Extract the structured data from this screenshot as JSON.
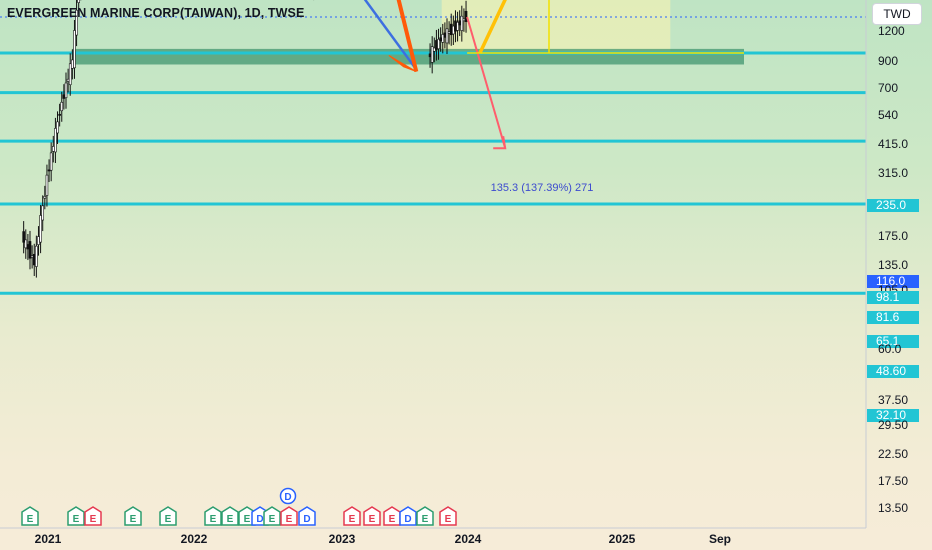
{
  "header": {
    "title": "EVERGREEN MARINE CORP(TAIWAN), 1D, TWSE",
    "currency_button": "TWD"
  },
  "colors": {
    "level_line": "#22c5d4",
    "level_label_bg": "#22c5d4",
    "zigzag": "#ff5a0a",
    "trend": "#3d6fe0",
    "up_arrow": "#ffc107",
    "down_arrow": "#ff5d6c",
    "target_box": "#fff4b0",
    "support_zone": "#2e8b63",
    "earnings_badge_green": "#2c9d6f",
    "earnings_badge_red": "#e53950",
    "dividend_badge": "#2962ff"
  },
  "chart_data": {
    "type": "candlestick",
    "title": "EVERGREEN MARINE CORP(TAIWAN), 1D, TWSE",
    "scale": "log",
    "x_axis_labels": [
      "2021",
      "2022",
      "2023",
      "2024",
      "2025",
      "Sep"
    ],
    "y_axis_labels": [
      "1200",
      "900",
      "700",
      "540",
      "415.0",
      "315.0",
      "235.0",
      "175.0",
      "135.0",
      "116.0",
      "105.0",
      "98.1",
      "81.6",
      "65.1",
      "60.0",
      "48.60",
      "37.50",
      "32.10",
      "29.50",
      "22.50",
      "17.50",
      "13.50"
    ],
    "highlighted_price_labels": [
      "235.0",
      "116.0",
      "98.1",
      "81.6",
      "65.1",
      "48.60",
      "32.10"
    ],
    "horizontal_levels": [
      235.0,
      98.1,
      81.6,
      65.1,
      48.6,
      32.1
    ],
    "last_price": 116.0,
    "price_series": [
      {
        "x": "2020-11",
        "y": 42
      },
      {
        "x": "2020-12",
        "y": 37
      },
      {
        "x": "2021-01",
        "y": 55
      },
      {
        "x": "2021-02",
        "y": 75
      },
      {
        "x": "2021-03",
        "y": 95
      },
      {
        "x": "2021-04",
        "y": 190
      },
      {
        "x": "2021-05",
        "y": 230
      },
      {
        "x": "2021-06",
        "y": 360
      },
      {
        "x": "2021-07",
        "y": 580
      },
      {
        "x": "2021-08",
        "y": 380
      },
      {
        "x": "2021-09",
        "y": 330
      },
      {
        "x": "2021-10",
        "y": 245
      },
      {
        "x": "2021-11",
        "y": 325
      },
      {
        "x": "2021-12",
        "y": 360
      },
      {
        "x": "2022-01",
        "y": 320
      },
      {
        "x": "2022-02",
        "y": 340
      },
      {
        "x": "2022-03",
        "y": 380
      },
      {
        "x": "2022-04",
        "y": 280
      },
      {
        "x": "2022-05",
        "y": 275
      },
      {
        "x": "2022-06",
        "y": 205
      },
      {
        "x": "2022-07",
        "y": 270
      },
      {
        "x": "2022-08",
        "y": 215
      },
      {
        "x": "2022-09",
        "y": 145
      },
      {
        "x": "2022-10",
        "y": 135
      },
      {
        "x": "2022-11",
        "y": 152
      },
      {
        "x": "2022-12",
        "y": 162
      },
      {
        "x": "2023-01",
        "y": 165
      },
      {
        "x": "2023-02",
        "y": 155
      },
      {
        "x": "2023-03",
        "y": 162
      },
      {
        "x": "2023-04",
        "y": 160
      }
    ],
    "recent_series": [
      {
        "x": "2023-07",
        "y": 96
      },
      {
        "x": "2023-08",
        "y": 105
      },
      {
        "x": "2023-09",
        "y": 110
      },
      {
        "x": "2023-10",
        "y": 116
      }
    ],
    "zigzag_pattern": [
      {
        "x": "2021-07",
        "y": 580
      },
      {
        "x": "2021-10",
        "y": 225
      },
      {
        "x": "2022-03",
        "y": 395
      },
      {
        "x": "2022-06",
        "y": 210
      },
      {
        "x": "2022-07",
        "y": 275
      },
      {
        "x": "2022-10",
        "y": 135
      },
      {
        "x": "2023-03",
        "y": 185
      },
      {
        "x": "2023-06",
        "y": 90
      }
    ],
    "trend_line": [
      {
        "x": "2021-07",
        "y": 580
      },
      {
        "x": "2023-06",
        "y": 92
      }
    ],
    "projection_up": {
      "from": {
        "x": "2023-11",
        "y": 98
      },
      "to": {
        "x": "2024-06",
        "y": 235
      }
    },
    "projection_down": {
      "from": {
        "x": "2023-10",
        "y": 116
      },
      "to": {
        "x": "2024-01",
        "y": 63
      }
    },
    "measure_label": "135.3 (137.39%) 271",
    "target_zone": {
      "x_start": "2023-08",
      "x_end": "2025-02",
      "y_low": 98.1,
      "y_high": 235
    },
    "support_zone": {
      "x_start": "2021-01",
      "x_end": "2025-03",
      "y_low": 93,
      "y_high": 100
    },
    "event_badges": [
      "E",
      "E",
      "E",
      "E",
      "E",
      "E",
      "E",
      "E",
      "D",
      "E",
      "E",
      "D",
      "E",
      "E",
      "E",
      "D",
      "E",
      "E"
    ],
    "dividend_marker": "D"
  }
}
